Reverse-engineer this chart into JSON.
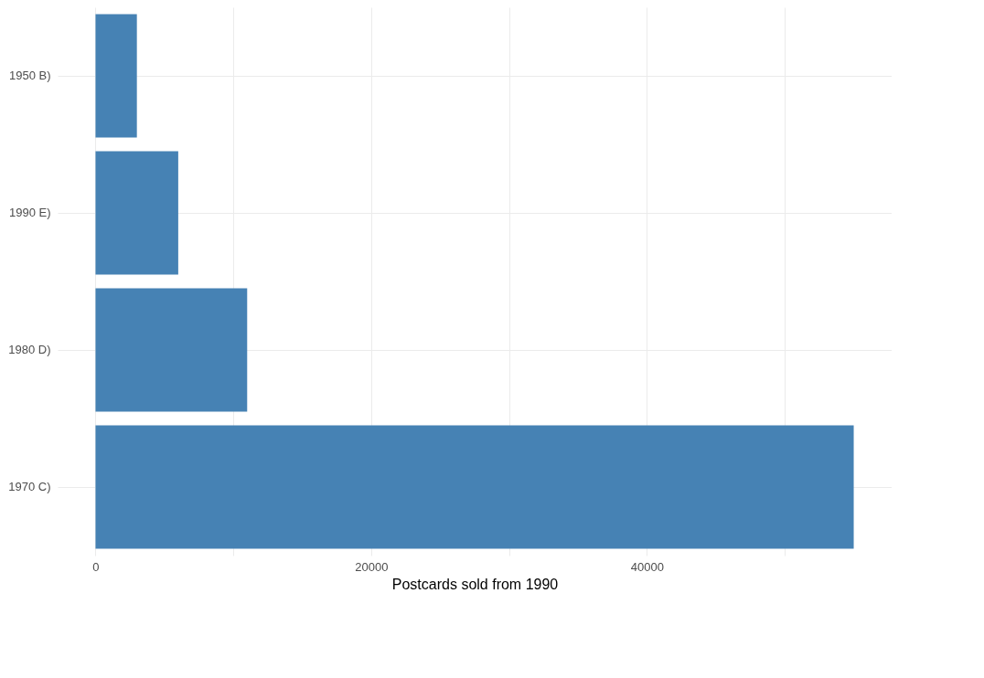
{
  "chart_data": {
    "type": "bar",
    "orientation": "horizontal",
    "xlabel": "Postcards sold from 1990",
    "categories": [
      "1950 B)",
      "1990 E)",
      "1980 D)",
      "1970 C)"
    ],
    "values": [
      3000,
      6000,
      11000,
      55000
    ],
    "color": "#4682b4",
    "xlim": [
      -2750,
      57750
    ],
    "xticks": [
      0,
      {
        "value": 10000,
        "label": null
      },
      20000,
      {
        "value": 30000,
        "label": null
      },
      40000,
      {
        "value": 50000,
        "label": null
      }
    ],
    "grid": true
  }
}
